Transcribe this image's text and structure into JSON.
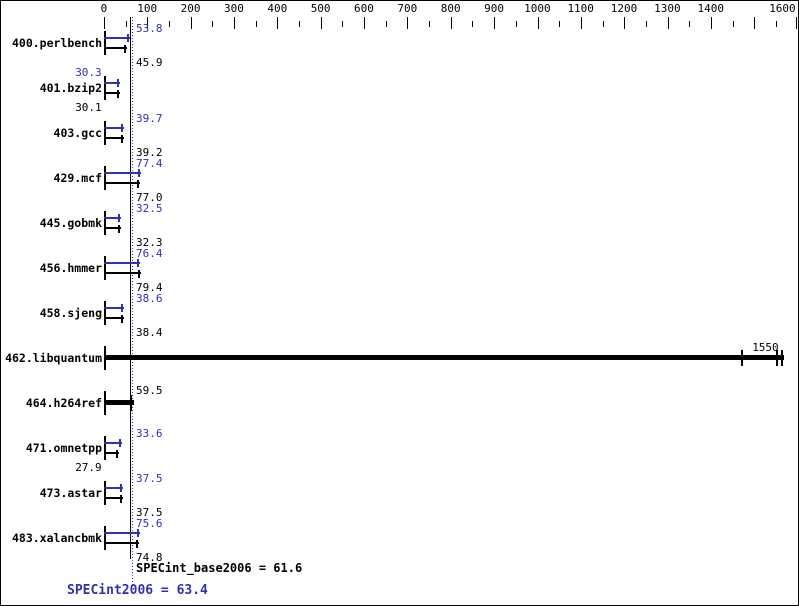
{
  "colors": {
    "peak_blue": "#3030B0",
    "base_black": "#000000",
    "background": "#FFFFFF",
    "frame": "#000000"
  },
  "summary": {
    "base_text": "SPECint_base2006 = 61.6",
    "base_value": 61.6,
    "peak_text": "SPECint2006 = 63.4",
    "peak_value": 63.4
  },
  "chart_data": {
    "type": "bar",
    "orientation": "horizontal",
    "title": "",
    "xlabel": "",
    "ylabel": "",
    "axis": {
      "min": 0,
      "max": 1600,
      "minor_step": 50,
      "major_step": 100,
      "labeled_ticks": [
        0,
        100,
        200,
        300,
        400,
        500,
        600,
        700,
        800,
        900,
        1000,
        1100,
        1200,
        1300,
        1400,
        1600
      ],
      "position": "top",
      "grid": false
    },
    "reference_lines": [
      {
        "name": "base-mean-line",
        "value": 61.6,
        "style": "solid",
        "color": "#000000"
      },
      {
        "name": "peak-mean-line",
        "value": 63.4,
        "style": "dotted",
        "color": "#3030B0"
      }
    ],
    "categories": [
      "400.perlbench",
      "401.bzip2",
      "403.gcc",
      "429.mcf",
      "445.gobmk",
      "456.hmmer",
      "458.sjeng",
      "462.libquantum",
      "464.h264ref",
      "471.omnetpp",
      "473.astar",
      "483.xalancbmk"
    ],
    "series": [
      {
        "name": "SPECint2006 (peak)",
        "color": "#3030B0",
        "values": [
          53.8,
          30.3,
          39.7,
          77.4,
          32.5,
          76.4,
          38.6,
          1560,
          59.5,
          33.6,
          37.5,
          75.6
        ]
      },
      {
        "name": "SPECint_base2006 (base)",
        "color": "#000000",
        "values": [
          45.9,
          30.1,
          39.2,
          77.0,
          32.3,
          79.4,
          38.4,
          1550,
          59.5,
          27.9,
          37.5,
          74.8
        ]
      }
    ],
    "notes": "libquantum and h264ref rows render as one merged thick bar with a single black label; peak values for those rows estimated from bar length (unlabeled in image)",
    "rows": [
      {
        "name": "400.perlbench",
        "peak": 53.8,
        "base": 45.9,
        "peak_label": "53.8",
        "base_label": "45.9",
        "peak_side": "right",
        "base_side": "right"
      },
      {
        "name": "401.bzip2",
        "peak": 30.3,
        "base": 30.1,
        "peak_label": "30.3",
        "base_label": "30.1",
        "peak_side": "left",
        "base_side": "left"
      },
      {
        "name": "403.gcc",
        "peak": 39.7,
        "base": 39.2,
        "peak_label": "39.7",
        "base_label": "39.2",
        "peak_side": "right",
        "base_side": "right"
      },
      {
        "name": "429.mcf",
        "peak": 77.4,
        "base": 77.0,
        "peak_label": "77.4",
        "base_label": "77.0",
        "peak_side": "right",
        "base_side": "right"
      },
      {
        "name": "445.gobmk",
        "peak": 32.5,
        "base": 32.3,
        "peak_label": "32.5",
        "base_label": "32.3",
        "peak_side": "right",
        "base_side": "right"
      },
      {
        "name": "456.hmmer",
        "peak": 76.4,
        "base": 79.4,
        "peak_label": "76.4",
        "base_label": "79.4",
        "peak_side": "right",
        "base_side": "right"
      },
      {
        "name": "458.sjeng",
        "peak": 38.6,
        "base": 38.4,
        "peak_label": "38.6",
        "base_label": "38.4",
        "peak_side": "right",
        "base_side": "right"
      },
      {
        "name": "462.libquantum",
        "peak": 1560,
        "base": 1550,
        "merged": true,
        "single_label": "1550",
        "label_anchor": "bar_end",
        "extra_caps": [
          1470,
          1550,
          1562
        ]
      },
      {
        "name": "464.h264ref",
        "peak": 59.5,
        "base": 59.5,
        "merged": true,
        "single_label": "59.5",
        "label_anchor": "line_right",
        "extra_caps": [
          59.5
        ]
      },
      {
        "name": "471.omnetpp",
        "peak": 33.6,
        "base": 27.9,
        "peak_label": "33.6",
        "base_label": "27.9",
        "peak_side": "right",
        "base_side": "left"
      },
      {
        "name": "473.astar",
        "peak": 37.5,
        "base": 37.5,
        "peak_label": "37.5",
        "base_label": "37.5",
        "peak_side": "right",
        "base_side": "right"
      },
      {
        "name": "483.xalancbmk",
        "peak": 75.6,
        "base": 74.8,
        "peak_label": "75.6",
        "base_label": "74.8",
        "peak_side": "right",
        "base_side": "right"
      }
    ]
  }
}
